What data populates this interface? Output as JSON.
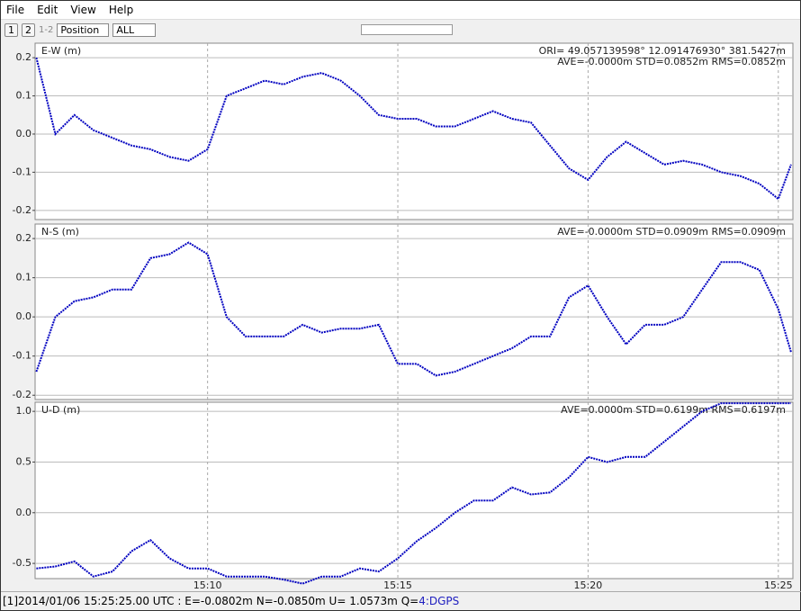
{
  "menu": [
    "File",
    "Edit",
    "View",
    "Help"
  ],
  "toolbar": {
    "buttons": [
      "1",
      "2",
      "1-2"
    ],
    "plot_type": "Position",
    "filter": "ALL"
  },
  "chart_data": [
    {
      "type": "line",
      "title": "E-W (m)",
      "color": "#0000c0",
      "annotations": [
        "ORI= 49.057139598°   12.091476930° 381.5427m",
        "AVE=-0.0000m STD=0.0852m RMS=0.0852m"
      ],
      "ylim": [
        -0.224,
        0.238
      ],
      "yticks": [
        0.2,
        0.1,
        {
          "value": 0,
          "label": "0.0"
        },
        -0.1,
        -0.2
      ],
      "grid": true,
      "series": [
        {
          "name": "E-W",
          "color": "#0000c0",
          "values": [
            0.2,
            0.0,
            0.05,
            0.01,
            -0.01,
            -0.03,
            -0.04,
            -0.06,
            -0.07,
            -0.04,
            0.1,
            0.12,
            0.14,
            0.13,
            0.15,
            0.16,
            0.14,
            0.1,
            0.05,
            0.04,
            0.04,
            0.02,
            0.02,
            0.04,
            0.06,
            0.04,
            0.03,
            -0.03,
            -0.09,
            -0.12,
            -0.06,
            -0.02,
            -0.05,
            -0.08,
            -0.07,
            -0.08,
            -0.1,
            -0.11,
            -0.13,
            -0.17,
            -0.08
          ]
        }
      ]
    },
    {
      "type": "line",
      "title": "N-S (m)",
      "color": "#0000c0",
      "annotations": [
        "AVE=-0.0000m STD=0.0909m RMS=0.0909m"
      ],
      "ylim": [
        -0.211,
        0.237
      ],
      "yticks": [
        0.2,
        0.1,
        {
          "value": 0,
          "label": "0.0"
        },
        -0.1,
        -0.2
      ],
      "grid": true,
      "series": [
        {
          "name": "N-S",
          "color": "#0000c0",
          "values": [
            -0.14,
            0.0,
            0.04,
            0.05,
            0.07,
            0.07,
            0.15,
            0.16,
            0.19,
            0.16,
            0.0,
            -0.05,
            -0.05,
            -0.05,
            -0.02,
            -0.04,
            -0.03,
            -0.03,
            -0.02,
            -0.12,
            -0.12,
            -0.15,
            -0.14,
            -0.12,
            -0.1,
            -0.08,
            -0.05,
            -0.05,
            0.05,
            0.08,
            0.0,
            -0.07,
            -0.02,
            -0.02,
            0.0,
            0.07,
            0.14,
            0.14,
            0.12,
            0.02,
            -0.09
          ]
        }
      ]
    },
    {
      "type": "line",
      "title": "U-D (m)",
      "color": "#0000c0",
      "annotations": [
        "AVE=0.0000m STD=0.6199m RMS=0.6197m"
      ],
      "ylim": [
        -0.65,
        1.09
      ],
      "yticks": [
        {
          "value": 1,
          "label": "1.0"
        },
        0.5,
        {
          "value": 0,
          "label": "0.0"
        },
        -0.5
      ],
      "grid": true,
      "xlim": [
        "15:05:28",
        "15:25:23"
      ],
      "xticks": [
        {
          "value": "15:10:00",
          "label": "15:10"
        },
        {
          "value": "15:15:00",
          "label": "15:15"
        },
        {
          "value": "15:20:00",
          "label": "15:20"
        },
        {
          "value": "15:25:00",
          "label": "15:25"
        }
      ],
      "x": [
        "15:05:30",
        "15:06:00",
        "15:06:30",
        "15:07:00",
        "15:07:30",
        "15:08:00",
        "15:08:30",
        "15:09:00",
        "15:09:30",
        "15:10:00",
        "15:10:30",
        "15:11:00",
        "15:11:30",
        "15:12:00",
        "15:12:30",
        "15:13:00",
        "15:13:30",
        "15:14:00",
        "15:14:30",
        "15:15:00",
        "15:15:30",
        "15:16:00",
        "15:16:30",
        "15:17:00",
        "15:17:30",
        "15:18:00",
        "15:18:30",
        "15:19:00",
        "15:19:30",
        "15:20:00",
        "15:20:30",
        "15:21:00",
        "15:21:30",
        "15:22:00",
        "15:22:30",
        "15:23:00",
        "15:23:30",
        "15:24:00",
        "15:24:30",
        "15:25:00",
        "15:25:20"
      ],
      "series": [
        {
          "name": "U-D",
          "color": "#0000c0",
          "values": [
            -0.55,
            -0.53,
            -0.48,
            -0.63,
            -0.58,
            -0.38,
            -0.27,
            -0.45,
            -0.55,
            -0.55,
            -0.63,
            -0.63,
            -0.63,
            -0.66,
            -0.7,
            -0.63,
            -0.63,
            -0.55,
            -0.58,
            -0.45,
            -0.28,
            -0.15,
            0.0,
            0.12,
            0.12,
            0.25,
            0.18,
            0.2,
            0.35,
            0.55,
            0.5,
            0.55,
            0.55,
            0.7,
            0.85,
            1.0,
            1.08,
            1.08,
            1.08,
            1.08,
            1.08
          ]
        }
      ]
    }
  ],
  "status": {
    "text": "[1]2014/01/06 15:25:25.00 UTC : E=-0.0802m N=-0.0850m U= 1.0573m Q=",
    "quality": "4:DGPS"
  }
}
